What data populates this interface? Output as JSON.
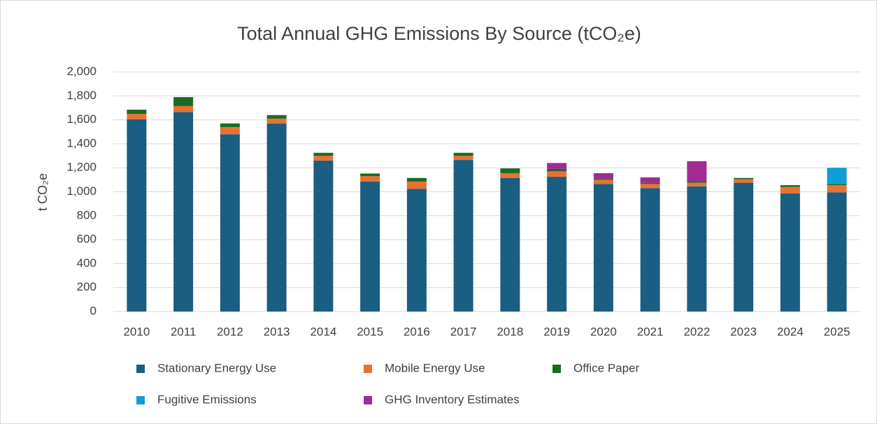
{
  "chart_data": {
    "type": "stacked_bar",
    "title": "Total Annual GHG Emissions By Source (tCO₂e)",
    "y_label": "t CO₂e",
    "categories": [
      "2010",
      "2011",
      "2012",
      "2013",
      "2014",
      "2015",
      "2016",
      "2017",
      "2018",
      "2019",
      "2020",
      "2021",
      "2022",
      "2023",
      "2024",
      "2025"
    ],
    "series": [
      {
        "name": "Stationary Energy Use",
        "color": "#1a5e82",
        "values": [
          1605,
          1665,
          1480,
          1570,
          1260,
          1085,
          1025,
          1265,
          1115,
          1125,
          1065,
          1030,
          1045,
          1075,
          985,
          995
        ]
      },
      {
        "name": "Mobile Energy Use",
        "color": "#e97132",
        "values": [
          45,
          50,
          60,
          40,
          40,
          45,
          60,
          35,
          40,
          45,
          35,
          35,
          30,
          30,
          55,
          60
        ]
      },
      {
        "name": "Office Paper",
        "color": "#196b24",
        "values": [
          35,
          75,
          30,
          30,
          25,
          22,
          30,
          25,
          40,
          20,
          10,
          10,
          10,
          10,
          15,
          10
        ]
      },
      {
        "name": "Fugitive Emissions",
        "color": "#0f9ed5",
        "values": [
          null,
          null,
          null,
          null,
          null,
          null,
          null,
          null,
          null,
          null,
          null,
          null,
          null,
          null,
          null,
          135
        ]
      },
      {
        "name": "GHG Inventory Estimates",
        "color": "#a02b93",
        "values": [
          null,
          null,
          null,
          null,
          null,
          null,
          null,
          null,
          null,
          50,
          45,
          45,
          170,
          null,
          null,
          null
        ]
      }
    ],
    "ylim": [
      0,
      2000
    ],
    "yticks": [
      0,
      200,
      400,
      600,
      800,
      {
        "value": 1000,
        "label": "1,000"
      },
      {
        "value": 1200,
        "label": "1,200"
      },
      {
        "value": 1400,
        "label": "1,400"
      },
      {
        "value": 1600,
        "label": "1,600"
      },
      {
        "value": 1800,
        "label": "1,800"
      },
      {
        "value": 2000,
        "label": "2,000"
      }
    ],
    "grid": true,
    "legend": "bottom"
  }
}
